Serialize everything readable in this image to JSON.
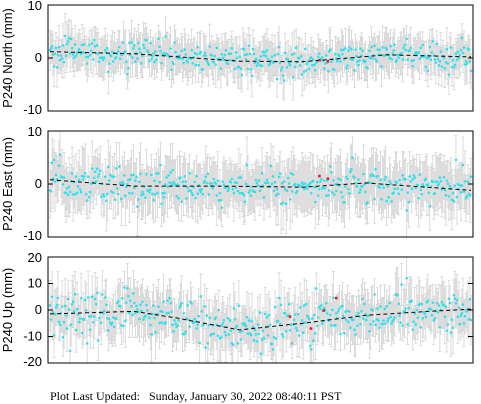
{
  "footer": {
    "text": "Plot Last Updated:   Sunday, January 30, 2022 08:40:11 PST"
  },
  "colors": {
    "points": "#33e0ea",
    "outliers": "#e8182f",
    "error_bars": "#d3d3d3",
    "trend": "#000000"
  },
  "chart_data": [
    {
      "type": "scatter",
      "ylabel": "P240 North (mm)",
      "ylim": [
        -10,
        10
      ],
      "yticks": [
        10,
        0,
        -10
      ],
      "grid": false,
      "legend": "none",
      "n_points": 420,
      "outliers": [
        {
          "x": 0.64,
          "y": -0.4
        },
        {
          "x": 0.66,
          "y": -0.6
        }
      ],
      "trend_profile": [
        [
          0,
          1.2
        ],
        [
          0.2,
          0.8
        ],
        [
          0.45,
          -0.6
        ],
        [
          0.6,
          -0.7
        ],
        [
          0.8,
          0.6
        ],
        [
          1,
          0.2
        ]
      ],
      "error_bar": 3.3,
      "scatter_sd": 1.3
    },
    {
      "type": "scatter",
      "ylabel": "P240 East (mm)",
      "ylim": [
        -10,
        10
      ],
      "yticks": [
        10,
        0,
        -10
      ],
      "grid": false,
      "legend": "none",
      "n_points": 420,
      "outliers": [
        {
          "x": 0.64,
          "y": 1.5
        },
        {
          "x": 0.66,
          "y": 1.0
        }
      ],
      "trend_profile": [
        [
          0,
          0.8
        ],
        [
          0.2,
          -0.4
        ],
        [
          0.4,
          -0.4
        ],
        [
          0.6,
          -0.6
        ],
        [
          0.75,
          0.2
        ],
        [
          1,
          -1.2
        ]
      ],
      "error_bar": 4.5,
      "scatter_sd": 1.7
    },
    {
      "type": "scatter",
      "ylabel": "P240 Up (mm)",
      "ylim": [
        -20,
        20
      ],
      "yticks": [
        20,
        10,
        0,
        -10,
        -20
      ],
      "grid": false,
      "legend": "none",
      "n_points": 420,
      "outliers": [
        {
          "x": 0.57,
          "y": -2.5
        },
        {
          "x": 0.62,
          "y": -7.0
        },
        {
          "x": 0.65,
          "y": -0.2
        },
        {
          "x": 0.68,
          "y": 4.5
        }
      ],
      "trend_profile": [
        [
          0,
          -1.5
        ],
        [
          0.2,
          -0.5
        ],
        [
          0.3,
          -3.0
        ],
        [
          0.45,
          -7.5
        ],
        [
          0.6,
          -5.0
        ],
        [
          0.75,
          -2.0
        ],
        [
          0.9,
          -0.5
        ],
        [
          1,
          0.3
        ]
      ],
      "error_bar": 8,
      "scatter_sd": 4
    }
  ]
}
